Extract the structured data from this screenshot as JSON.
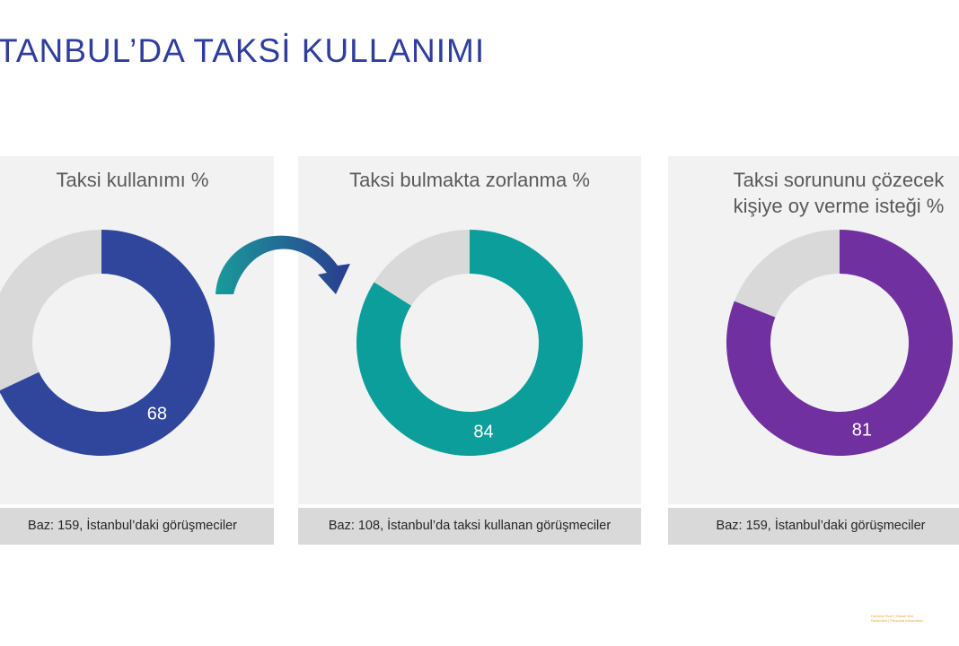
{
  "page": {
    "title": "İSTANBUL’DA TAKSİ KULLANIMI",
    "footer_note_line1": "Herkese Özel | Kişisel Veri",
    "footer_note_line2": "Restricted | Personal Information"
  },
  "colors": {
    "title": "#2f3d9c",
    "remainder": "#d9d9d9",
    "arrow_start": "#1a9a9a",
    "arrow_end": "#2a3b8f"
  },
  "chart_data": [
    {
      "type": "pie",
      "variant": "donut",
      "title": "Taksi kullanımı %",
      "value": 68,
      "value_label": "68",
      "remainder": 32,
      "color": "#2f469c",
      "base_note": "Baz: 159, İstanbul’daki görüşmeciler"
    },
    {
      "type": "pie",
      "variant": "donut",
      "title": "Taksi bulmakta zorlanma %",
      "value": 84,
      "value_label": "84",
      "remainder": 16,
      "color": "#0b9e9a",
      "base_note": "Baz: 108, İstanbul’da taksi kullanan görüşmeciler"
    },
    {
      "type": "pie",
      "variant": "donut",
      "title": "Taksi sorununu çözecek\nkişiye oy verme isteği %",
      "value": 81,
      "value_label": "81",
      "remainder": 19,
      "color": "#7030a0",
      "base_note": "Baz: 159, İstanbul’daki görüşmeciler"
    }
  ]
}
